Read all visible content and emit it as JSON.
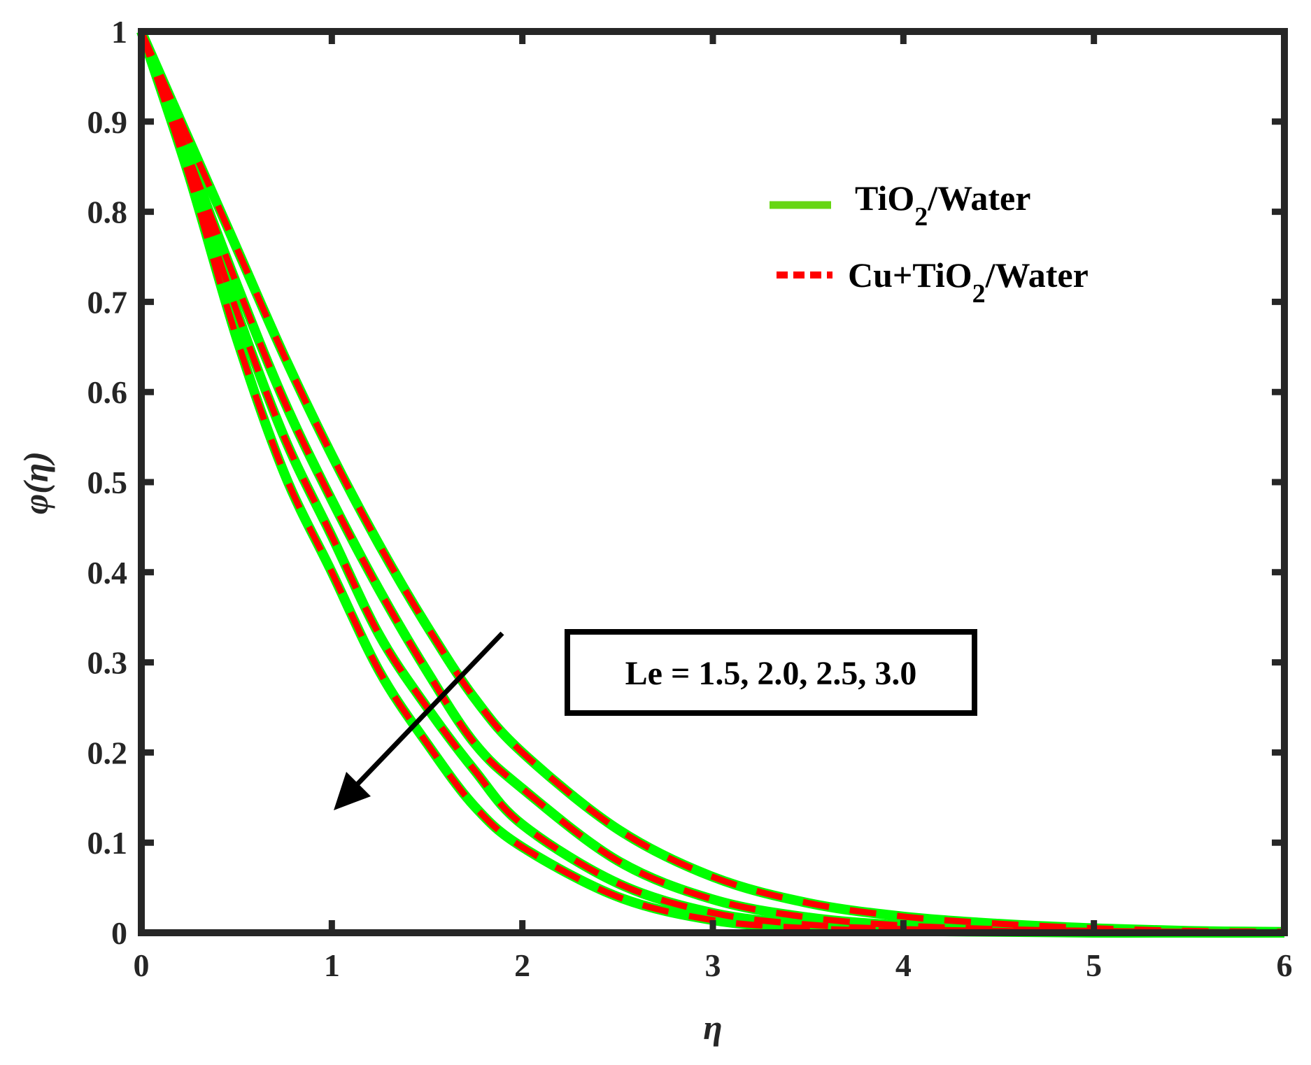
{
  "chart_data": {
    "type": "line",
    "title": "",
    "xlabel": "η",
    "ylabel": "φ(η)",
    "xlim": [
      0,
      6
    ],
    "ylim": [
      0,
      1
    ],
    "xticks": [
      "0",
      "1",
      "2",
      "3",
      "4",
      "5",
      "6"
    ],
    "yticks": [
      "0",
      "0.1",
      "0.2",
      "0.3",
      "0.4",
      "0.5",
      "0.6",
      "0.7",
      "0.8",
      "0.9",
      "1"
    ],
    "grid": false,
    "legend_position": "upper right",
    "legend": [
      {
        "label": "TiO",
        "sub": "2",
        "suffix": "/Water",
        "style": "solid",
        "color": "#66D612"
      },
      {
        "label": "Cu+TiO",
        "sub": "2",
        "suffix": "/Water",
        "style": "dashed",
        "color": "#FF0000"
      }
    ],
    "annotation": {
      "text": "Le = 1.5, 2.0, 2.5, 3.0",
      "arrow": "decreasing direction of Le increase"
    },
    "x": [
      0,
      0.25,
      0.5,
      0.75,
      1.0,
      1.25,
      1.5,
      1.75,
      2.0,
      2.5,
      3.0,
      3.5,
      4.0,
      4.5,
      5.0,
      5.5,
      6.0
    ],
    "series": [
      {
        "name": "TiO2/Water Le=1.5",
        "style": "solid",
        "color": "#00FF00",
        "values": [
          1,
          0.88,
          0.76,
          0.64,
          0.53,
          0.43,
          0.34,
          0.26,
          0.2,
          0.115,
          0.062,
          0.033,
          0.018,
          0.01,
          0.005,
          0.002,
          0.001
        ]
      },
      {
        "name": "TiO2/Water Le=2.0",
        "style": "solid",
        "color": "#00FF00",
        "values": [
          1,
          0.86,
          0.72,
          0.59,
          0.48,
          0.38,
          0.29,
          0.21,
          0.16,
          0.08,
          0.037,
          0.017,
          0.008,
          0.004,
          0.002,
          0.001,
          0
        ]
      },
      {
        "name": "TiO2/Water Le=2.5",
        "style": "solid",
        "color": "#00FF00",
        "values": [
          1,
          0.85,
          0.69,
          0.55,
          0.44,
          0.33,
          0.25,
          0.18,
          0.12,
          0.055,
          0.022,
          0.009,
          0.004,
          0.002,
          0.001,
          0,
          0
        ]
      },
      {
        "name": "TiO2/Water Le=3.0",
        "style": "solid",
        "color": "#00FF00",
        "values": [
          1,
          0.84,
          0.66,
          0.51,
          0.4,
          0.29,
          0.21,
          0.14,
          0.095,
          0.04,
          0.014,
          0.005,
          0.002,
          0.001,
          0,
          0,
          0
        ]
      },
      {
        "name": "Cu+TiO2/Water Le=1.5",
        "style": "dashed",
        "color": "#FF0000",
        "values": [
          1,
          0.88,
          0.76,
          0.64,
          0.53,
          0.43,
          0.34,
          0.26,
          0.2,
          0.115,
          0.062,
          0.033,
          0.018,
          0.01,
          0.005,
          0.002,
          0.001
        ]
      },
      {
        "name": "Cu+TiO2/Water Le=2.0",
        "style": "dashed",
        "color": "#FF0000",
        "values": [
          1,
          0.86,
          0.72,
          0.59,
          0.48,
          0.38,
          0.29,
          0.21,
          0.16,
          0.08,
          0.037,
          0.017,
          0.008,
          0.004,
          0.002,
          0.001,
          0
        ]
      },
      {
        "name": "Cu+TiO2/Water Le=2.5",
        "style": "dashed",
        "color": "#FF0000",
        "values": [
          1,
          0.85,
          0.69,
          0.55,
          0.44,
          0.33,
          0.25,
          0.18,
          0.12,
          0.055,
          0.022,
          0.009,
          0.004,
          0.002,
          0.001,
          0,
          0
        ]
      },
      {
        "name": "Cu+TiO2/Water Le=3.0",
        "style": "dashed",
        "color": "#FF0000",
        "values": [
          1,
          0.84,
          0.66,
          0.51,
          0.4,
          0.29,
          0.21,
          0.14,
          0.095,
          0.04,
          0.014,
          0.005,
          0.002,
          0.001,
          0,
          0,
          0
        ]
      }
    ]
  }
}
